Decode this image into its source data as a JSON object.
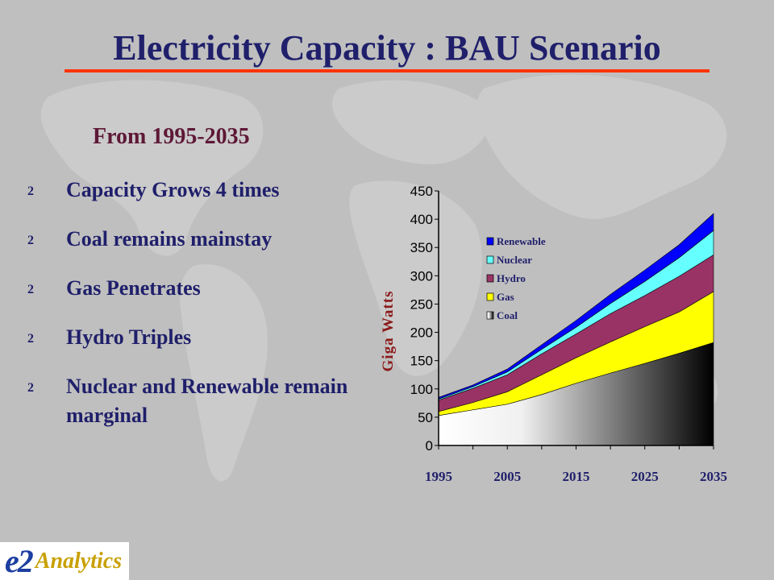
{
  "slide": {
    "title": "Electricity Capacity : BAU Scenario",
    "subtitle": "From 1995-2035",
    "bullet_icon": "2",
    "bullets": [
      "Capacity Grows 4 times",
      "Coal remains mainstay",
      "Gas Penetrates",
      "Hydro Triples",
      "Nuclear and Renewable remain marginal"
    ]
  },
  "logo": {
    "mark": "e2",
    "word": "Analytics"
  },
  "colors": {
    "background": "#bfbfbf",
    "title": "#1f1f6b",
    "title_rule": "#ff3300",
    "subtitle": "#5e1836"
  },
  "chart_data": {
    "type": "area",
    "stacked": true,
    "ylabel": "Giga Watts",
    "ylim": [
      0,
      450
    ],
    "yticks": [
      "0",
      "50",
      "100",
      "150",
      "200",
      "250",
      "300",
      "350",
      "400",
      "450"
    ],
    "x": [
      1995,
      2000,
      2005,
      2010,
      2015,
      2020,
      2025,
      2030,
      2035
    ],
    "xticks": [
      "1995",
      "2005",
      "2015",
      "2025",
      "2035"
    ],
    "legend_position": "upper-left inside plot",
    "series": [
      {
        "name": "Coal",
        "color": "gradient white-to-black",
        "values": [
          53,
          63,
          73,
          90,
          110,
          128,
          145,
          163,
          182
        ]
      },
      {
        "name": "Gas",
        "color": "#ffff00",
        "values": [
          7,
          13,
          22,
          35,
          45,
          55,
          65,
          73,
          90
        ]
      },
      {
        "name": "Hydro",
        "color": "#993366",
        "values": [
          20,
          25,
          30,
          37,
          42,
          50,
          55,
          63,
          65
        ]
      },
      {
        "name": "Nuclear",
        "color": "#66ffff",
        "values": [
          2,
          3,
          5,
          8,
          12,
          18,
          25,
          33,
          43
        ]
      },
      {
        "name": "Renewable",
        "color": "#0000ff",
        "values": [
          3,
          3,
          5,
          8,
          12,
          16,
          20,
          23,
          30
        ]
      }
    ],
    "legend_order": [
      "Renewable",
      "Nuclear",
      "Hydro",
      "Gas",
      "Coal"
    ]
  }
}
